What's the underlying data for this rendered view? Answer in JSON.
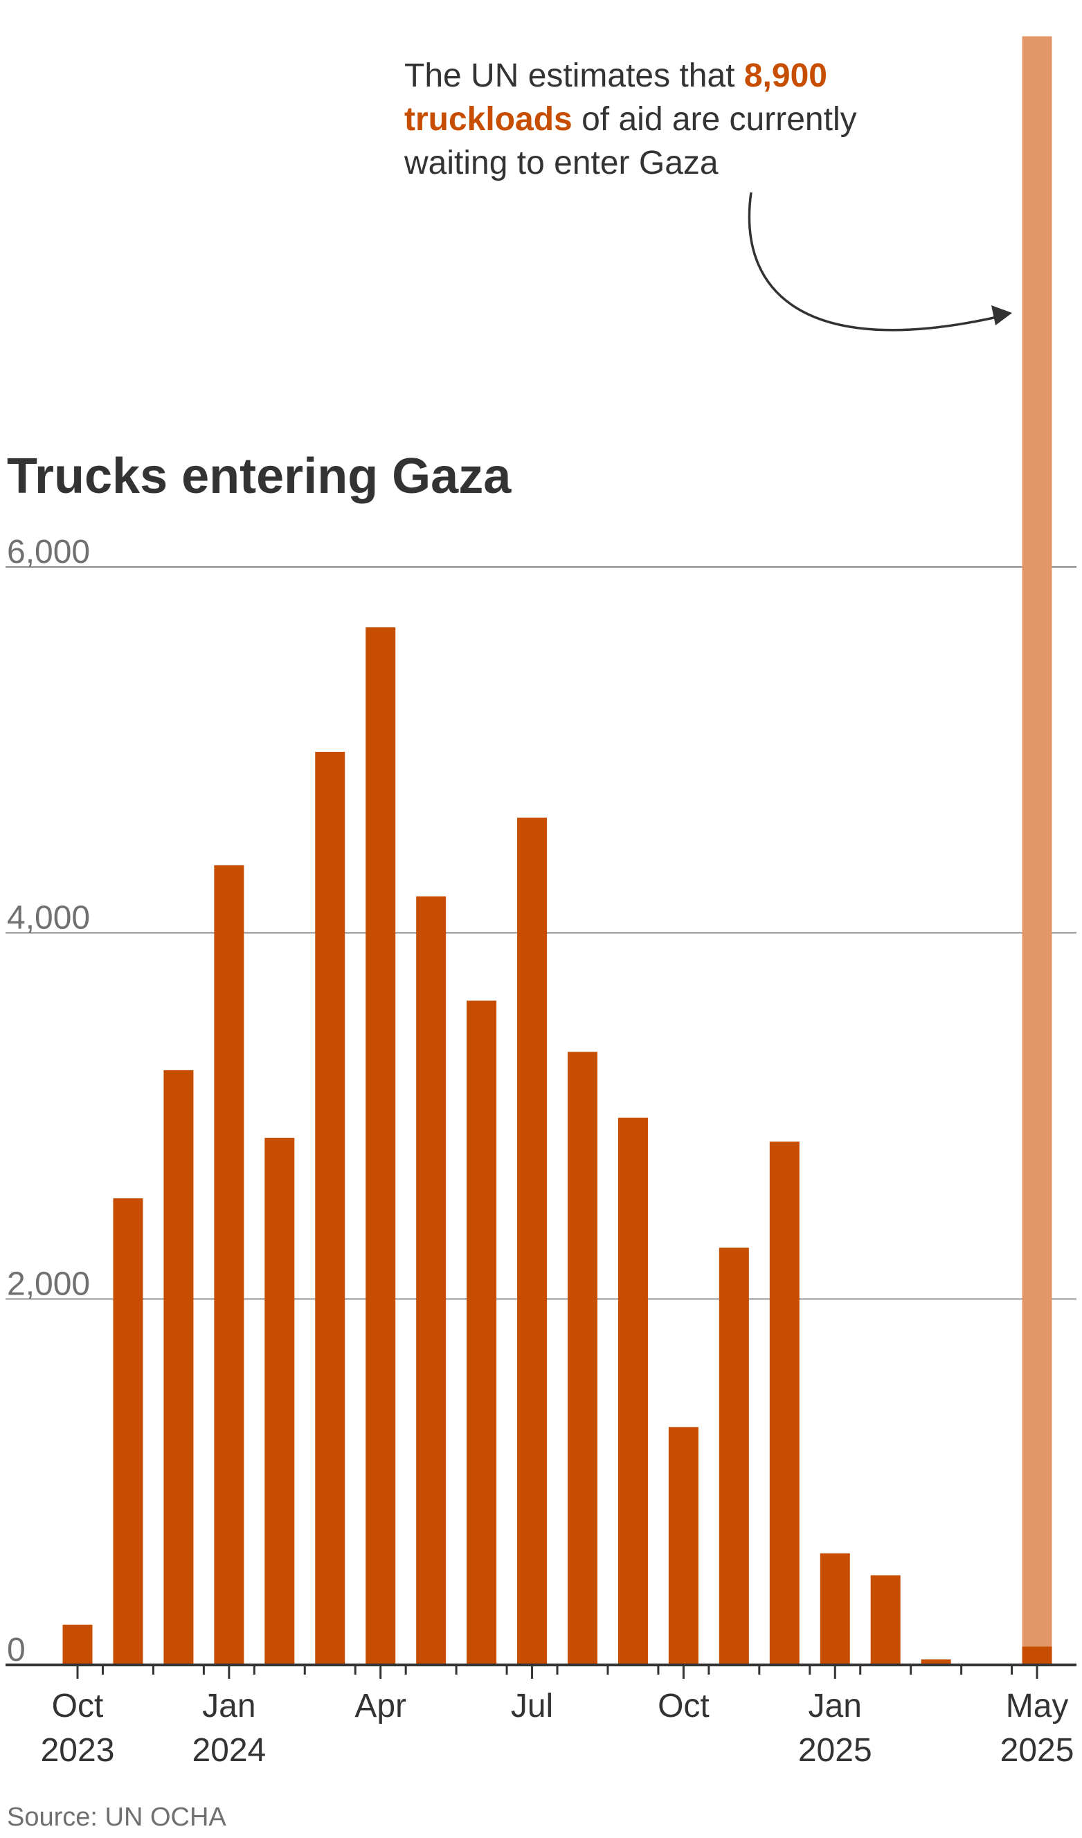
{
  "chart_data": {
    "type": "bar",
    "title": "Trucks entering Gaza",
    "source": "Source: UN OCHA",
    "ylim": [
      0,
      6000
    ],
    "yticks": [
      0,
      2000,
      4000,
      6000
    ],
    "ytick_labels": [
      "0",
      "2,000",
      "4,000",
      "6,000"
    ],
    "grid": true,
    "categories": [
      "Oct 2023",
      "Nov 2023",
      "Dec 2023",
      "Jan 2024",
      "Feb 2024",
      "Mar 2024",
      "Apr 2024",
      "May 2024",
      "Jun 2024",
      "Jul 2024",
      "Aug 2024",
      "Sep 2024",
      "Oct 2024",
      "Nov 2024",
      "Dec 2024",
      "Jan 2025",
      "Feb 2025",
      "Mar 2025",
      "Apr 2025",
      "May 2025"
    ],
    "values": [
      220,
      2550,
      3250,
      4370,
      2880,
      4990,
      5670,
      4200,
      3630,
      4630,
      3350,
      2990,
      1300,
      2280,
      2860,
      610,
      490,
      30,
      0,
      100
    ],
    "x_tick_labels": [
      {
        "index": 0,
        "month": "Oct",
        "year": "2023"
      },
      {
        "index": 3,
        "month": "Jan",
        "year": "2024"
      },
      {
        "index": 6,
        "month": "Apr",
        "year": ""
      },
      {
        "index": 9,
        "month": "Jul",
        "year": ""
      },
      {
        "index": 12,
        "month": "Oct",
        "year": ""
      },
      {
        "index": 15,
        "month": "Jan",
        "year": "2025"
      },
      {
        "index": 19,
        "month": "May",
        "year": "2025"
      }
    ],
    "highlight": {
      "category": "May 2025",
      "value": 8900,
      "label": "truckloads waiting to enter Gaza"
    },
    "annotation": {
      "line1_prefix": "The UN estimates that ",
      "line1_highlight": "8,900",
      "line2_highlight": "truckloads",
      "line2_suffix": " of aid are currently",
      "line3": "waiting to enter Gaza"
    },
    "colors": {
      "bar": "#c74e00",
      "highlight": "#e39667",
      "grid": "#666666",
      "axis": "#333333"
    }
  }
}
